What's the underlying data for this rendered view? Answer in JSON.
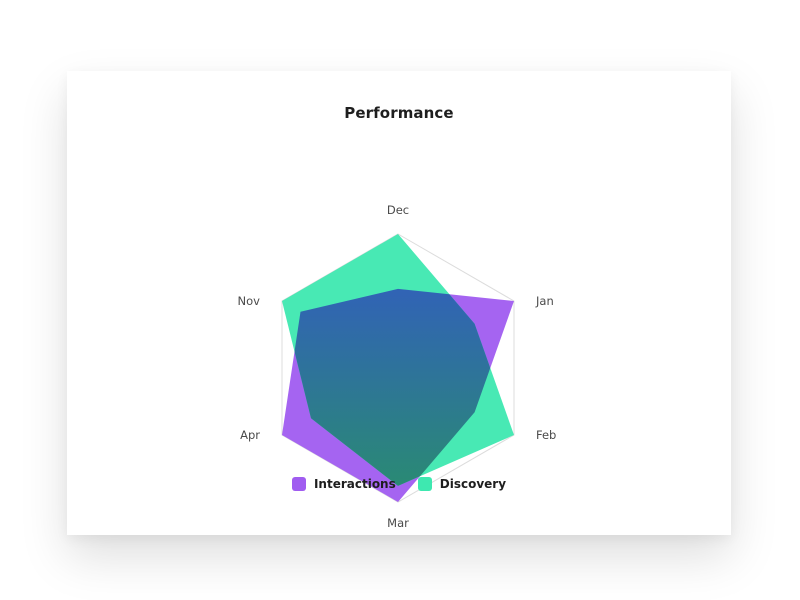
{
  "chart_data": {
    "type": "radar",
    "title": "Performance",
    "categories": [
      "Dec",
      "Jan",
      "Feb",
      "Mar",
      "Apr",
      "Nov"
    ],
    "rmax": 100,
    "grid": true,
    "legend_position": "bottom-center",
    "series": [
      {
        "name": "Interactions",
        "values": [
          59,
          100,
          66,
          100,
          100,
          84
        ],
        "color": "#a05cf0"
      },
      {
        "name": "Discovery",
        "values": [
          100,
          66,
          100,
          88,
          75,
          100
        ],
        "color": "#3ee8b0"
      }
    ],
    "gradient_overlap": {
      "top": "#3358c8",
      "bottom": "#2a8a74"
    }
  }
}
